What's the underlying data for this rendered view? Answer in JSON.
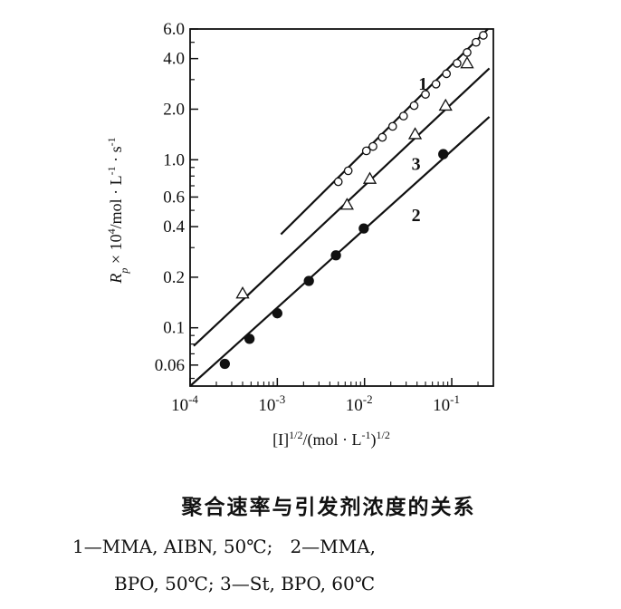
{
  "chart_data": {
    "type": "scatter",
    "xscale": "log",
    "yscale": "log",
    "xlim": [
      0.0001,
      0.3
    ],
    "ylim": [
      0.045,
      6.0
    ],
    "grid": false,
    "xlabel": "[I]1/2/(mol · L-1)1/2",
    "ylabel": "Rp × 104/mol · L-1 · s-1",
    "x_ticks": [
      {
        "value": 0.0001,
        "base": "10",
        "exp": "-4"
      },
      {
        "value": 0.001,
        "base": "10",
        "exp": "-3"
      },
      {
        "value": 0.01,
        "base": "10",
        "exp": "-2"
      },
      {
        "value": 0.1,
        "base": "10",
        "exp": "-1"
      }
    ],
    "y_ticks": [
      {
        "value": 0.06,
        "label": "0.06"
      },
      {
        "value": 0.1,
        "label": "0.1"
      },
      {
        "value": 0.2,
        "label": "0.2"
      },
      {
        "value": 0.4,
        "label": "0.4"
      },
      {
        "value": 0.6,
        "label": "0.6"
      },
      {
        "value": 1.0,
        "label": "1.0"
      },
      {
        "value": 2.0,
        "label": "2.0"
      },
      {
        "value": 4.0,
        "label": "4.0"
      },
      {
        "value": 6.0,
        "label": "6.0"
      }
    ],
    "series": [
      {
        "name": "1",
        "marker": "open-circle",
        "label_at": [
          0.018,
          2.85
        ],
        "line": [
          [
            0.0011,
            0.36
          ],
          [
            0.26,
            6.0
          ]
        ],
        "points": [
          [
            0.005,
            0.74
          ],
          [
            0.0065,
            0.86
          ],
          [
            0.0105,
            1.13
          ],
          [
            0.0125,
            1.2
          ],
          [
            0.016,
            1.36
          ],
          [
            0.021,
            1.58
          ],
          [
            0.028,
            1.82
          ],
          [
            0.037,
            2.1
          ],
          [
            0.05,
            2.45
          ],
          [
            0.066,
            2.82
          ],
          [
            0.087,
            3.25
          ],
          [
            0.115,
            3.75
          ],
          [
            0.15,
            4.35
          ],
          [
            0.19,
            5.0
          ],
          [
            0.23,
            5.5
          ]
        ]
      },
      {
        "name": "3",
        "marker": "open-triangle",
        "label_at": [
          0.015,
          0.95
        ],
        "line": [
          [
            0.00011,
            0.078
          ],
          [
            0.27,
            3.5
          ]
        ],
        "points": [
          [
            0.0004,
            0.16
          ],
          [
            0.0063,
            0.54
          ],
          [
            0.0115,
            0.77
          ],
          [
            0.038,
            1.42
          ],
          [
            0.085,
            2.1
          ],
          [
            0.15,
            3.75
          ]
        ]
      },
      {
        "name": "2",
        "marker": "filled-circle",
        "label_at": [
          0.015,
          0.47
        ],
        "line": [
          [
            0.0001,
            0.045
          ],
          [
            0.27,
            1.8
          ]
        ],
        "points": [
          [
            0.00025,
            0.061
          ],
          [
            0.00048,
            0.086
          ],
          [
            0.001,
            0.122
          ],
          [
            0.0023,
            0.19
          ],
          [
            0.0047,
            0.27
          ],
          [
            0.0098,
            0.39
          ],
          [
            0.08,
            1.08
          ]
        ]
      }
    ]
  },
  "caption": {
    "title": "聚合速率与引发剂浓度的关系",
    "line1": "1—MMA, AIBN, 50℃;   2—MMA,",
    "line2": "BPO, 50℃; 3—St, BPO, 60℃"
  }
}
